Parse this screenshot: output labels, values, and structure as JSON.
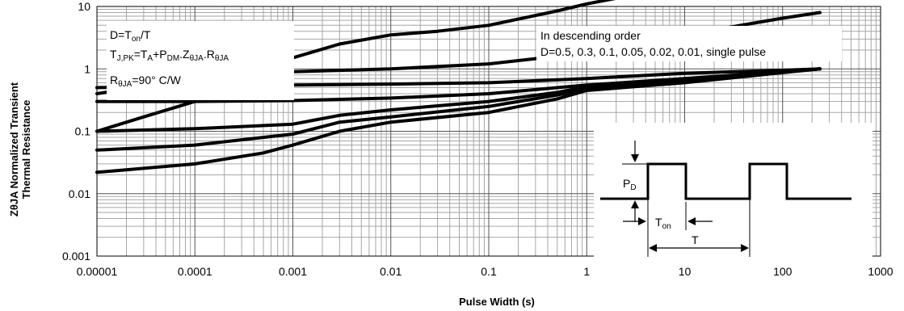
{
  "chart_data": {
    "type": "line",
    "xlabel": "Pulse Width (s)",
    "ylabel_line1": "ZθJA Normalized Transient",
    "ylabel_line2": "Thermal Resistance",
    "x_scale": "log",
    "y_scale": "log",
    "xlim": [
      1e-05,
      1000
    ],
    "ylim": [
      0.001,
      10
    ],
    "x_ticks": [
      {
        "v": 1e-05,
        "label": "0.00001"
      },
      {
        "v": 0.0001,
        "label": "0.0001"
      },
      {
        "v": 0.001,
        "label": "0.001"
      },
      {
        "v": 0.01,
        "label": "0.01"
      },
      {
        "v": 0.1,
        "label": "0.1"
      },
      {
        "v": 1,
        "label": "1"
      },
      {
        "v": 10,
        "label": "10"
      },
      {
        "v": 100,
        "label": "100"
      },
      {
        "v": 1000,
        "label": "1000"
      }
    ],
    "y_ticks": [
      {
        "v": 0.001,
        "label": "0.001"
      },
      {
        "v": 0.01,
        "label": "0.01"
      },
      {
        "v": 0.1,
        "label": "0.1"
      },
      {
        "v": 1,
        "label": "1"
      },
      {
        "v": 10,
        "label": "10"
      }
    ],
    "grid": true,
    "series": [
      {
        "name": "D=0.5",
        "points": [
          [
            1e-05,
            0.5
          ],
          [
            0.0001,
            0.55
          ],
          [
            0.001,
            0.55
          ],
          [
            0.01,
            0.57
          ],
          [
            0.1,
            0.6
          ],
          [
            1,
            0.7
          ],
          [
            10,
            0.85
          ],
          [
            100,
            0.95
          ],
          [
            240,
            1.0
          ]
        ]
      },
      {
        "name": "D=0.3",
        "points": [
          [
            1e-05,
            0.3
          ],
          [
            0.0001,
            0.3
          ],
          [
            0.001,
            0.31
          ],
          [
            0.01,
            0.34
          ],
          [
            0.1,
            0.4
          ],
          [
            1,
            0.55
          ],
          [
            10,
            0.7
          ],
          [
            100,
            0.9
          ],
          [
            240,
            1.0
          ]
        ]
      },
      {
        "name": "D=0.1",
        "points": [
          [
            1e-05,
            0.1
          ],
          [
            0.0001,
            0.11
          ],
          [
            0.001,
            0.13
          ],
          [
            0.003,
            0.18
          ],
          [
            0.01,
            0.22
          ],
          [
            0.1,
            0.3
          ],
          [
            0.5,
            0.42
          ],
          [
            1,
            0.52
          ],
          [
            10,
            0.65
          ],
          [
            100,
            0.9
          ],
          [
            240,
            1.0
          ]
        ]
      },
      {
        "name": "D=0.05",
        "points": [
          [
            1e-05,
            0.05
          ],
          [
            0.0001,
            0.06
          ],
          [
            0.001,
            0.09
          ],
          [
            0.003,
            0.14
          ],
          [
            0.01,
            0.17
          ],
          [
            0.1,
            0.25
          ],
          [
            0.5,
            0.38
          ],
          [
            1,
            0.48
          ],
          [
            10,
            0.62
          ],
          [
            100,
            0.88
          ],
          [
            240,
            1.0
          ]
        ]
      },
      {
        "name": "D=0.02",
        "points": [
          [
            1e-05,
            0.022
          ],
          [
            0.0001,
            0.03
          ],
          [
            0.0005,
            0.045
          ],
          [
            0.001,
            0.06
          ],
          [
            0.003,
            0.1
          ],
          [
            0.01,
            0.14
          ],
          [
            0.1,
            0.2
          ],
          [
            0.5,
            0.33
          ],
          [
            1,
            0.45
          ],
          [
            10,
            0.6
          ],
          [
            100,
            0.87
          ],
          [
            240,
            1.0
          ]
        ]
      },
      {
        "name": "D=0.01",
        "points": [
          [
            1e-05,
            0.1
          ],
          [
            3e-05,
            0.17
          ],
          [
            0.0001,
            0.3
          ],
          [
            0.0003,
            0.5
          ],
          [
            0.001,
            0.9
          ],
          [
            0.01,
            1.0
          ],
          [
            0.1,
            1.2
          ],
          [
            1,
            1.8
          ],
          [
            10,
            3.5
          ],
          [
            100,
            6.5
          ],
          [
            240,
            8.0
          ]
        ]
      },
      {
        "name": "single pulse",
        "points": [
          [
            1e-05,
            0.4
          ],
          [
            0.0001,
            0.7
          ],
          [
            0.001,
            1.5
          ],
          [
            0.003,
            2.5
          ],
          [
            0.01,
            3.5
          ],
          [
            0.03,
            4.0
          ],
          [
            0.1,
            5.0
          ],
          [
            0.5,
            8.5
          ],
          [
            1,
            11.0
          ],
          [
            2,
            13.5
          ],
          [
            5,
            14.5
          ]
        ]
      }
    ]
  },
  "info_box": {
    "line1_main": "D=T",
    "line1_sub": "on",
    "line1_tail": "/T",
    "line2_a": "T",
    "line2_a_sub": "J,PK",
    "line2_b": "=T",
    "line2_b_sub": "A",
    "line2_c": "+P",
    "line2_c_sub": "DM",
    "line2_d": ".Z",
    "line2_d_sub": "θJA",
    "line2_e": ".R",
    "line2_e_sub": "θJA",
    "line3_main": "R",
    "line3_sub": "θJA",
    "line3_tail": "=90°  C/W"
  },
  "order_box": {
    "line1": "In descending order",
    "line2": "D=0.5, 0.3, 0.1, 0.05, 0.02, 0.01, single pulse"
  },
  "pulse_diagram": {
    "pd_main": "P",
    "pd_sub": "D",
    "ton_main": "T",
    "ton_sub": "on",
    "t_label": "T"
  }
}
